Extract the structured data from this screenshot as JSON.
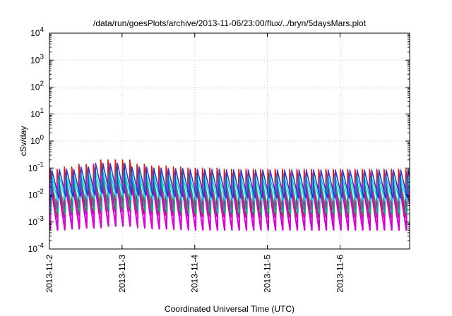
{
  "chart_data": {
    "type": "line",
    "title": "/data/run/goesPlots/archive/2013-11-06/23:00/flux/../bryn/5daysMars.plot",
    "xlabel": "Coordinated Universal Time (UTC)",
    "ylabel": "cSv/day",
    "yscale": "log",
    "ylim": [
      0.0001,
      10000
    ],
    "xlim": [
      "2013-11-02",
      "2013-11-06T23:00"
    ],
    "xlim_days": [
      0,
      4.958
    ],
    "x_ticks": [
      {
        "day": 0,
        "label": "2013-11-2"
      },
      {
        "day": 1,
        "label": "2013-11-3"
      },
      {
        "day": 2,
        "label": "2013-11-4"
      },
      {
        "day": 3,
        "label": "2013-11-5"
      },
      {
        "day": 4,
        "label": "2013-11-6"
      }
    ],
    "y_ticks": [
      {
        "exp": -4,
        "value": 0.0001
      },
      {
        "exp": -3,
        "value": 0.001
      },
      {
        "exp": -2,
        "value": 0.01
      },
      {
        "exp": -1,
        "value": 0.1
      },
      {
        "exp": 0,
        "value": 1
      },
      {
        "exp": 1,
        "value": 10
      },
      {
        "exp": 2,
        "value": 100
      },
      {
        "exp": 3,
        "value": 1000
      },
      {
        "exp": 4,
        "value": 10000
      }
    ],
    "grid": true,
    "legend": "none",
    "sawtooth_period_days": 0.1,
    "series": [
      {
        "color": "#e41a1c",
        "peak": [
          0.09,
          0.11,
          0.14,
          0.2,
          0.2,
          0.14,
          0.12,
          0.11,
          0.1,
          0.1,
          0.09,
          0.09,
          0.09,
          0.09,
          0.09,
          0.09,
          0.09,
          0.09,
          0.09,
          0.09,
          0.09
        ],
        "trough": [
          0.003,
          0.0035,
          0.004,
          0.005,
          0.005,
          0.004,
          0.0035,
          0.0033,
          0.003,
          0.003,
          0.003,
          0.003,
          0.003,
          0.003,
          0.003,
          0.003,
          0.003,
          0.003,
          0.003,
          0.003,
          0.003
        ]
      },
      {
        "color": "#9b2f58",
        "peak": [
          0.05,
          0.06,
          0.07,
          0.1,
          0.1,
          0.07,
          0.065,
          0.06,
          0.055,
          0.055,
          0.05,
          0.05,
          0.05,
          0.05,
          0.05,
          0.05,
          0.05,
          0.05,
          0.05,
          0.05,
          0.05
        ],
        "trough": [
          0.0015,
          0.0018,
          0.002,
          0.0025,
          0.0025,
          0.002,
          0.0018,
          0.0017,
          0.0016,
          0.0016,
          0.0015,
          0.0015,
          0.0015,
          0.0015,
          0.0015,
          0.0015,
          0.0015,
          0.0015,
          0.0015,
          0.0015,
          0.0015
        ]
      },
      {
        "color": "#ff00ff",
        "peak": [
          0.03,
          0.035,
          0.04,
          0.05,
          0.05,
          0.04,
          0.037,
          0.035,
          0.032,
          0.032,
          0.03,
          0.03,
          0.03,
          0.03,
          0.03,
          0.03,
          0.03,
          0.03,
          0.03,
          0.03,
          0.03
        ],
        "trough": [
          0.0007,
          0.0008,
          0.0009,
          0.001,
          0.001,
          0.0009,
          0.0008,
          0.0008,
          0.0007,
          0.0007,
          0.0007,
          0.0007,
          0.0007,
          0.0007,
          0.0007,
          0.0007,
          0.0007,
          0.0007,
          0.0007,
          0.0007,
          0.0007
        ]
      },
      {
        "color": "#d400d4",
        "peak": [
          0.02,
          0.023,
          0.027,
          0.033,
          0.033,
          0.027,
          0.025,
          0.023,
          0.021,
          0.021,
          0.02,
          0.02,
          0.02,
          0.02,
          0.02,
          0.02,
          0.02,
          0.02,
          0.02,
          0.02,
          0.02
        ],
        "trough": [
          0.0005,
          0.00055,
          0.0006,
          0.0007,
          0.0007,
          0.0006,
          0.00055,
          0.00052,
          0.0005,
          0.0005,
          0.0005,
          0.0005,
          0.0005,
          0.0005,
          0.0005,
          0.0005,
          0.0005,
          0.0005,
          0.0005,
          0.0005,
          0.0005
        ]
      },
      {
        "color": "#17a589",
        "peak": [
          0.04,
          0.045,
          0.055,
          0.07,
          0.07,
          0.055,
          0.05,
          0.045,
          0.042,
          0.042,
          0.04,
          0.04,
          0.04,
          0.04,
          0.04,
          0.04,
          0.04,
          0.04,
          0.04,
          0.04,
          0.04
        ],
        "trough": [
          0.002,
          0.0023,
          0.0026,
          0.003,
          0.003,
          0.0026,
          0.0024,
          0.0022,
          0.002,
          0.002,
          0.002,
          0.002,
          0.002,
          0.002,
          0.002,
          0.002,
          0.002,
          0.002,
          0.002,
          0.002,
          0.002
        ]
      },
      {
        "color": "#00e5e5",
        "peak": [
          0.05,
          0.055,
          0.065,
          0.08,
          0.08,
          0.065,
          0.06,
          0.055,
          0.052,
          0.052,
          0.05,
          0.05,
          0.05,
          0.05,
          0.05,
          0.05,
          0.05,
          0.05,
          0.05,
          0.05,
          0.05
        ],
        "trough": [
          0.006,
          0.0065,
          0.007,
          0.008,
          0.008,
          0.007,
          0.0066,
          0.0063,
          0.006,
          0.006,
          0.006,
          0.006,
          0.006,
          0.006,
          0.006,
          0.006,
          0.006,
          0.006,
          0.006,
          0.006,
          0.006
        ]
      },
      {
        "color": "#1f3fd6",
        "peak": [
          0.08,
          0.09,
          0.11,
          0.15,
          0.15,
          0.11,
          0.1,
          0.095,
          0.09,
          0.09,
          0.085,
          0.085,
          0.085,
          0.085,
          0.085,
          0.085,
          0.085,
          0.085,
          0.085,
          0.085,
          0.085
        ],
        "trough": [
          0.008,
          0.009,
          0.01,
          0.012,
          0.012,
          0.01,
          0.0095,
          0.009,
          0.0085,
          0.0085,
          0.008,
          0.008,
          0.008,
          0.008,
          0.008,
          0.008,
          0.008,
          0.008,
          0.008,
          0.008,
          0.008
        ]
      }
    ]
  }
}
